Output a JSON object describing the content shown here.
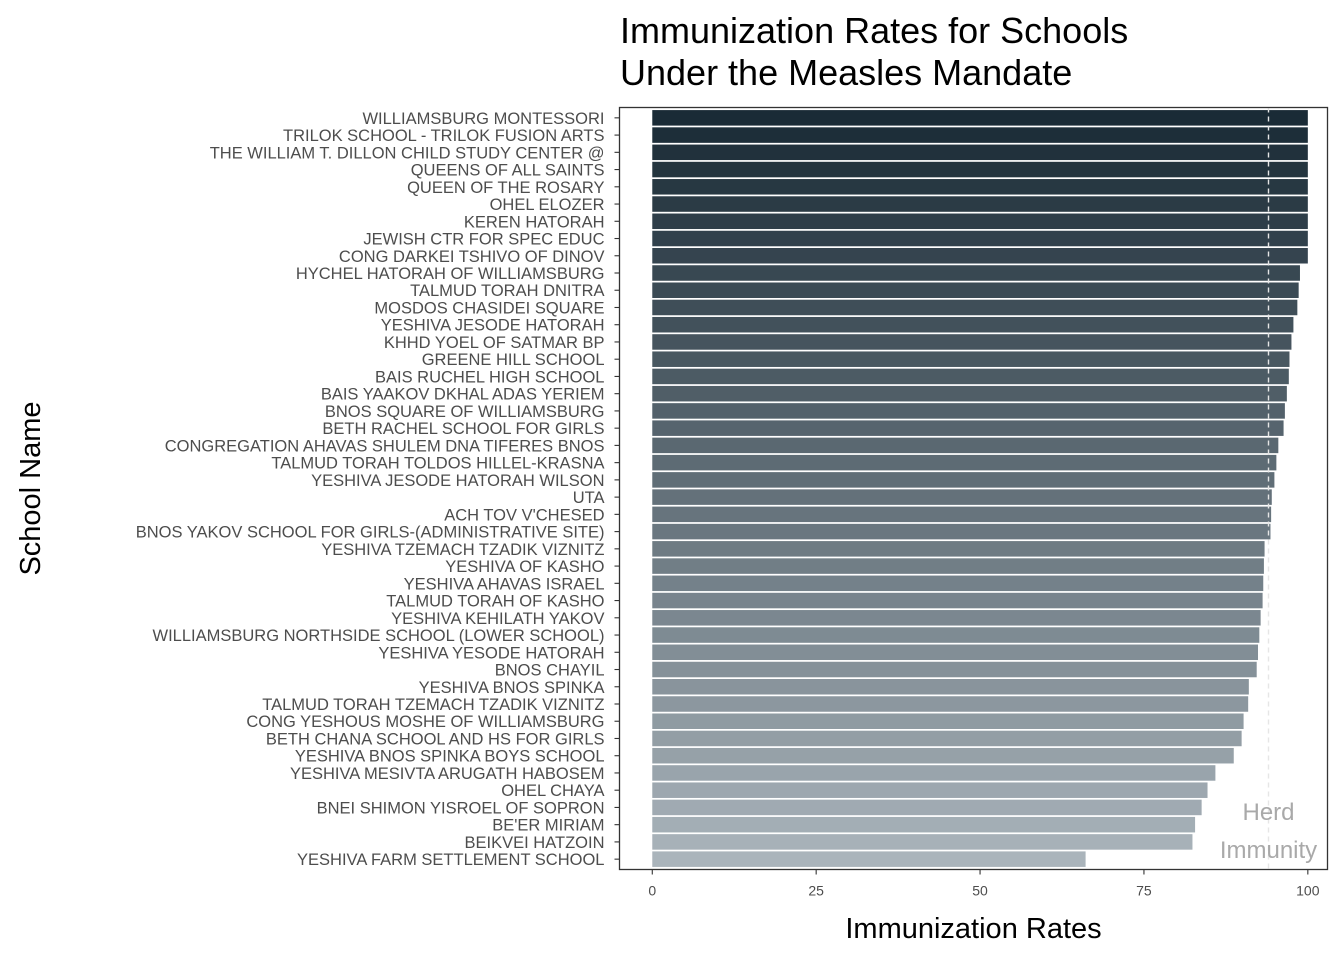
{
  "chart_data": {
    "type": "bar",
    "orientation": "horizontal",
    "title_lines": [
      "Immunization Rates for Schools",
      "Under the Measles Mandate"
    ],
    "title": "Immunization Rates for Schools Under the Measles Mandate",
    "xlabel": "Immunization Rates",
    "ylabel": "School Name",
    "xlim": [
      -5,
      103
    ],
    "xticks": [
      0,
      25,
      50,
      75,
      100
    ],
    "threshold_line": 94,
    "annotation_lines": [
      "Herd",
      "Immunity"
    ],
    "color_dark": "#1a2b36",
    "color_light": "#aab4bb",
    "categories": [
      "WILLIAMSBURG MONTESSORI",
      "TRILOK SCHOOL - TRILOK FUSION ARTS",
      "THE WILLIAM T. DILLON CHILD STUDY CENTER @",
      "QUEENS OF ALL SAINTS",
      "QUEEN OF THE ROSARY",
      "OHEL ELOZER",
      "KEREN HATORAH",
      "JEWISH CTR FOR SPEC EDUC",
      "CONG DARKEI TSHIVO OF DINOV",
      "HYCHEL HATORAH OF WILLIAMSBURG",
      "TALMUD TORAH DNITRA",
      "MOSDOS CHASIDEI SQUARE",
      "YESHIVA JESODE HATORAH",
      "KHHD YOEL OF SATMAR BP",
      "GREENE HILL SCHOOL",
      "BAIS RUCHEL HIGH SCHOOL",
      "BAIS YAAKOV DKHAL ADAS YERIEM",
      "BNOS SQUARE OF WILLIAMSBURG",
      "BETH RACHEL SCHOOL FOR GIRLS",
      "CONGREGATION AHAVAS SHULEM DNA TIFERES BNOS",
      "TALMUD TORAH TOLDOS HILLEL-KRASNA",
      "YESHIVA JESODE HATORAH WILSON",
      "UTA",
      "ACH TOV V'CHESED",
      "BNOS YAKOV SCHOOL FOR GIRLS-(ADMINISTRATIVE SITE)",
      "YESHIVA TZEMACH TZADIK VIZNITZ",
      "YESHIVA OF KASHO",
      "YESHIVA AHAVAS ISRAEL",
      "TALMUD TORAH OF KASHO",
      "YESHIVA KEHILATH YAKOV",
      "WILLIAMSBURG NORTHSIDE SCHOOL (LOWER SCHOOL)",
      "YESHIVA YESODE HATORAH",
      "BNOS CHAYIL",
      "YESHIVA BNOS SPINKA",
      "TALMUD TORAH TZEMACH TZADIK VIZNITZ",
      "CONG YESHOUS MOSHE OF WILLIAMSBURG",
      "BETH CHANA SCHOOL AND HS FOR GIRLS",
      "YESHIVA BNOS SPINKA BOYS SCHOOL",
      "YESHIVA MESIVTA ARUGATH HABOSEM",
      "OHEL CHAYA",
      "BNEI SHIMON YISROEL OF SOPRON",
      "BE'ER MIRIAM",
      "BEIKVEI HATZOIN",
      "YESHIVA FARM SETTLEMENT SCHOOL"
    ],
    "values": [
      100,
      100,
      100,
      100,
      100,
      100,
      100,
      100,
      100,
      98.8,
      98.6,
      98.4,
      97.8,
      97.5,
      97.2,
      97.1,
      96.8,
      96.5,
      96.3,
      95.5,
      95.2,
      94.9,
      94.5,
      94.4,
      94.3,
      93.4,
      93.3,
      93.2,
      93.1,
      92.8,
      92.6,
      92.4,
      92.2,
      91.0,
      90.9,
      90.2,
      89.9,
      88.7,
      85.9,
      84.7,
      83.8,
      82.8,
      82.4,
      66.1
    ]
  }
}
